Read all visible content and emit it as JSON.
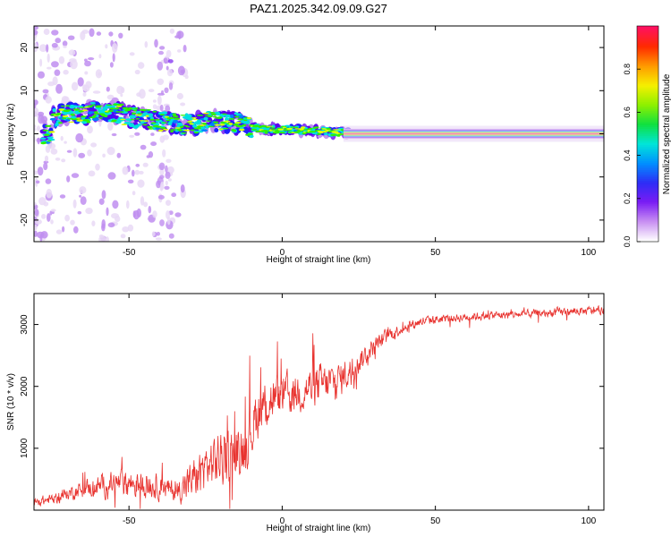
{
  "title": "PAZ1.2025.342.09.09.G27",
  "colors": {
    "snr_line": "#e8322e",
    "colormap": [
      "#ffffff",
      "#e9d9f6",
      "#c08ef0",
      "#8a3df2",
      "#5a00f0",
      "#2020ff",
      "#0080ff",
      "#00e0e0",
      "#00e070",
      "#30f000",
      "#e0ff00",
      "#ffb000",
      "#ff5000",
      "#ff0000",
      "#ff0080"
    ]
  },
  "chart_data": [
    {
      "type": "heatmap",
      "name": "spectrogram",
      "xlabel": "Height of straight line (km)",
      "ylabel": "Frequency (Hz)",
      "xlim": [
        -81,
        105
      ],
      "ylim": [
        -25,
        25
      ],
      "xticks": [
        -50,
        0,
        50,
        100
      ],
      "yticks": [
        -20,
        -10,
        0,
        10,
        20
      ],
      "ridge_track": [
        {
          "x": -75,
          "y": 3.5
        },
        {
          "x": -70,
          "y": 5.0
        },
        {
          "x": -65,
          "y": 4.5
        },
        {
          "x": -60,
          "y": 5.5
        },
        {
          "x": -55,
          "y": 5.0
        },
        {
          "x": -50,
          "y": 4.0
        },
        {
          "x": -45,
          "y": 3.5
        },
        {
          "x": -40,
          "y": 3.0
        },
        {
          "x": -35,
          "y": 2.5
        },
        {
          "x": -30,
          "y": 2.0
        },
        {
          "x": -25,
          "y": 2.8
        },
        {
          "x": -20,
          "y": 3.0
        },
        {
          "x": -15,
          "y": 2.5
        },
        {
          "x": -10,
          "y": 1.5
        },
        {
          "x": -5,
          "y": 1.0
        },
        {
          "x": 0,
          "y": 1.0
        },
        {
          "x": 5,
          "y": 0.9
        },
        {
          "x": 10,
          "y": 0.8
        },
        {
          "x": 15,
          "y": 0.5
        },
        {
          "x": 20,
          "y": 0.2
        },
        {
          "x": 25,
          "y": 0
        },
        {
          "x": 105,
          "y": 0
        }
      ],
      "colorbar": {
        "label": "Normalized spectral amplitude",
        "range": [
          0,
          1
        ],
        "ticks": [
          "0.0",
          "0.2",
          "0.4",
          "0.6",
          "0.8"
        ]
      }
    },
    {
      "type": "line",
      "name": "snr",
      "xlabel": "Height of straight line (km)",
      "ylabel": "SNR (10 * v/v)",
      "xlim": [
        -81,
        105
      ],
      "ylim": [
        0,
        3500
      ],
      "xticks": [
        -50,
        0,
        50,
        100
      ],
      "yticks": [
        1000,
        2000,
        3000
      ],
      "series": [
        {
          "name": "SNR",
          "x": [
            -81,
            -75,
            -70,
            -65,
            -60,
            -55,
            -50,
            -45,
            -40,
            -35,
            -30,
            -25,
            -20,
            -15,
            -12,
            -10,
            -8,
            -5,
            -2,
            0,
            5,
            10,
            15,
            20,
            25,
            30,
            35,
            40,
            45,
            50,
            55,
            60,
            65,
            70,
            75,
            80,
            85,
            90,
            95,
            100,
            105
          ],
          "mean": [
            120,
            180,
            260,
            350,
            380,
            420,
            450,
            400,
            380,
            300,
            450,
            700,
            850,
            900,
            1100,
            1300,
            1600,
            1750,
            1800,
            1850,
            1900,
            2000,
            2050,
            2150,
            2400,
            2650,
            2850,
            2950,
            3050,
            3080,
            3100,
            3120,
            3140,
            3150,
            3160,
            3170,
            3180,
            3200,
            3210,
            3220,
            3230
          ],
          "spread": [
            120,
            120,
            150,
            200,
            250,
            300,
            350,
            300,
            280,
            250,
            450,
            550,
            650,
            650,
            650,
            650,
            650,
            600,
            550,
            500,
            480,
            500,
            450,
            400,
            300,
            200,
            160,
            130,
            120,
            110,
            100,
            100,
            100,
            100,
            100,
            100,
            100,
            100,
            100,
            100,
            100
          ]
        }
      ]
    }
  ]
}
